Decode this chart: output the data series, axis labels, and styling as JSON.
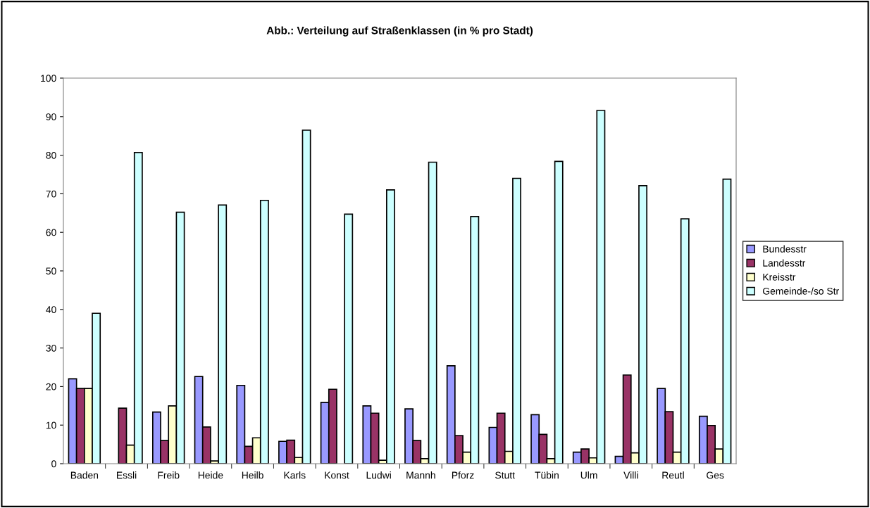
{
  "chart_data": {
    "type": "bar",
    "title": "Abb.: Verteilung auf Straßenklassen (in % pro Stadt)",
    "categories": [
      "Baden",
      "Essli",
      "Freib",
      "Heide",
      "Heilb",
      "Karls",
      "Konst",
      "Ludwi",
      "Mannh",
      "Pforz",
      "Stutt",
      "Tübin",
      "Ulm",
      "Villi",
      "Reutl",
      "Ges"
    ],
    "series": [
      {
        "name": "Bundesstr",
        "color": "#9999ff",
        "values": [
          22,
          null,
          13.4,
          22.6,
          20.3,
          5.8,
          15.9,
          15,
          14.2,
          25.4,
          9.4,
          12.7,
          3,
          1.9,
          19.5,
          12.3
        ]
      },
      {
        "name": "Landesstr",
        "color": "#993366",
        "values": [
          19.5,
          14.4,
          6,
          9.5,
          4.5,
          6.1,
          19.3,
          13.1,
          6,
          7.3,
          13.1,
          7.6,
          3.8,
          23,
          13.5,
          9.9
        ]
      },
      {
        "name": "Kreisstr",
        "color": "#ffffcc",
        "values": [
          19.5,
          4.8,
          15,
          0.7,
          6.7,
          1.6,
          null,
          0.9,
          1.3,
          3,
          3.2,
          1.3,
          1.5,
          2.8,
          3,
          3.8
        ]
      },
      {
        "name": "Gemeinde-/so Str",
        "color": "#ccffff",
        "values": [
          39,
          80.7,
          65.2,
          67.1,
          68.3,
          86.5,
          64.7,
          71,
          78.2,
          64.1,
          74,
          78.4,
          91.6,
          72.1,
          63.5,
          73.8
        ]
      }
    ],
    "ylim": [
      0,
      100
    ],
    "yticks": [
      0,
      10,
      20,
      30,
      40,
      50,
      60,
      70,
      80,
      90,
      100
    ],
    "grid": false,
    "legend": "right"
  }
}
